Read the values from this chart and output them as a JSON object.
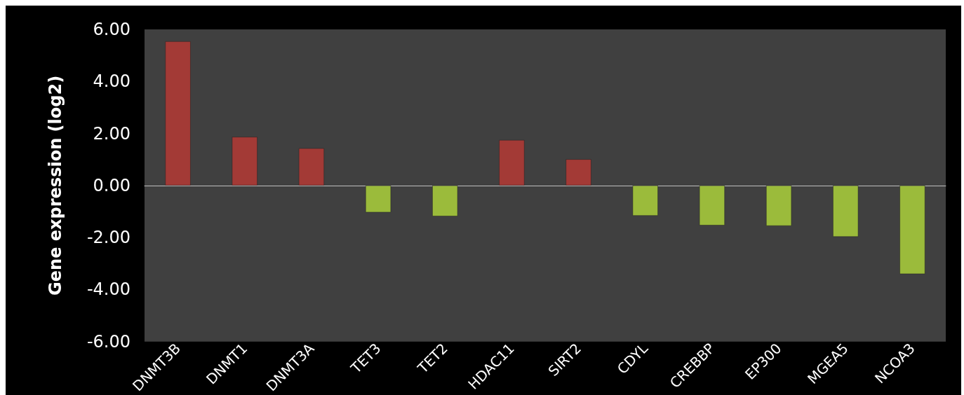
{
  "chart_data": {
    "type": "bar",
    "ylabel": "Gene expression (log2)",
    "categories": [
      "DNMT3B",
      "DNMT1",
      "DNMT3A",
      "TET3",
      "TET2",
      "HDAC11",
      "SIRT2",
      "CDYL",
      "CREBBP",
      "EP300",
      "MGEA5",
      "NCOA3"
    ],
    "values": [
      5.54,
      1.87,
      1.43,
      -1.03,
      -1.18,
      1.75,
      1.01,
      -1.16,
      -1.53,
      -1.55,
      -1.97,
      -3.4
    ],
    "colors": [
      "#a33a36",
      "#a33a36",
      "#a33a36",
      "#9bbb3b",
      "#9bbb3b",
      "#a33a36",
      "#a33a36",
      "#9bbb3b",
      "#9bbb3b",
      "#9bbb3b",
      "#9bbb3b",
      "#9bbb3b"
    ],
    "ylim": [
      -6,
      6
    ],
    "yticks": [
      {
        "value": -6,
        "label": "-6.00"
      },
      {
        "value": -4,
        "label": "-4.00"
      },
      {
        "value": -2,
        "label": "-2.00"
      },
      {
        "value": 0,
        "label": "0.00"
      },
      {
        "value": 2,
        "label": "2.00"
      },
      {
        "value": 4,
        "label": "4.00"
      },
      {
        "value": 6,
        "label": "6.00"
      }
    ],
    "data_labels": false
  }
}
